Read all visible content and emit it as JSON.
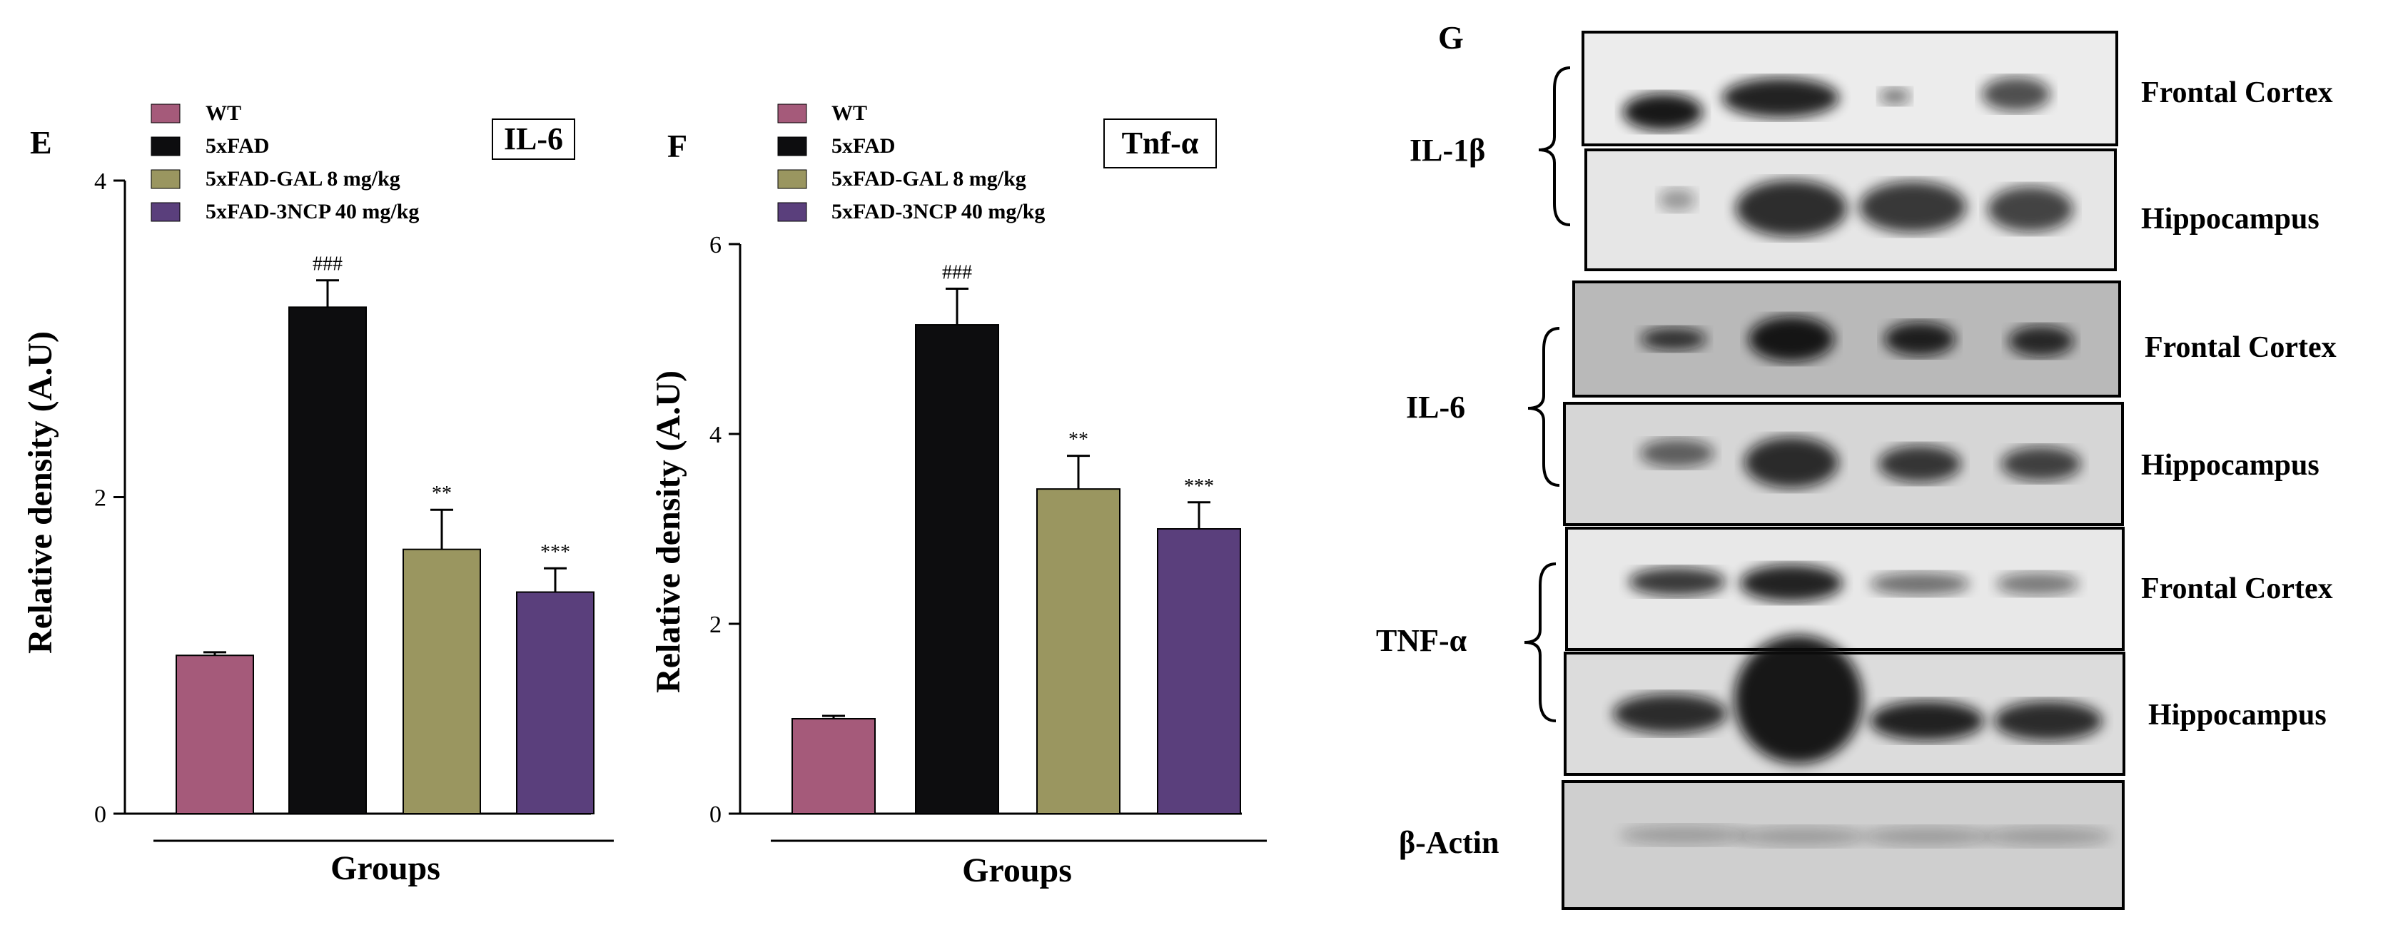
{
  "colors": {
    "wt": "#a55a7a",
    "fad": "#0d0d0f",
    "gal": "#9a9660",
    "ncp": "#5a3f7c",
    "axis": "#000000"
  },
  "chart_data": [
    {
      "type": "bar",
      "panel": "E",
      "title": "IL-6",
      "xlabel": "Groups",
      "ylabel": "Relative density (A.U)",
      "ylim": [
        0,
        4
      ],
      "yticks": [
        0,
        2,
        4
      ],
      "categories": [
        "WT",
        "5xFAD",
        "5xFAD-GAL 8 mg/kg",
        "5xFAD-3NCP 40 mg/kg"
      ],
      "values": [
        1.0,
        3.2,
        1.67,
        1.4
      ],
      "errors": [
        0.02,
        0.17,
        0.25,
        0.15
      ],
      "significance": [
        "",
        "###",
        "**",
        "***"
      ],
      "legend": [
        "WT",
        "5xFAD",
        "5xFAD-GAL 8 mg/kg",
        "5xFAD-3NCP 40 mg/kg"
      ]
    },
    {
      "type": "bar",
      "panel": "F",
      "title": "Tnf-α",
      "xlabel": "Groups",
      "ylabel": "Relative density (A.U)",
      "ylim": [
        0,
        6
      ],
      "yticks": [
        0,
        2,
        4,
        6
      ],
      "categories": [
        "WT",
        "5xFAD",
        "5xFAD-GAL 8 mg/kg",
        "5xFAD-3NCP 40 mg/kg"
      ],
      "values": [
        1.0,
        5.15,
        3.42,
        3.0
      ],
      "errors": [
        0.03,
        0.38,
        0.35,
        0.28
      ],
      "significance": [
        "",
        "###",
        "**",
        "***"
      ],
      "legend": [
        "WT",
        "5xFAD",
        "5xFAD-GAL 8 mg/kg",
        "5xFAD-3NCP 40 mg/kg"
      ]
    }
  ],
  "blot": {
    "panel": "G",
    "groups": [
      {
        "name": "IL-1β",
        "rows": [
          "Frontal Cortex",
          "Hippocampus"
        ]
      },
      {
        "name": "IL-6",
        "rows": [
          "Frontal Cortex",
          "Hippocampus"
        ]
      },
      {
        "name": "TNF-α",
        "rows": [
          "Frontal Cortex",
          "Hippocampus"
        ]
      }
    ],
    "loading_control": "β-Actin"
  }
}
